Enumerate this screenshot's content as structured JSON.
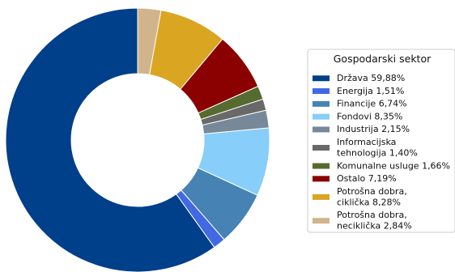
{
  "chart_data": {
    "type": "pie",
    "donut": true,
    "start": "top",
    "direction": "counterclockwise",
    "legend": {
      "title": "Gospodarski sektor",
      "placement": "right"
    },
    "slices": [
      {
        "label": [
          "Država 59,88%"
        ],
        "value": 59.88,
        "color": "#003f8a"
      },
      {
        "label": [
          "Energija 1,51%"
        ],
        "value": 1.51,
        "color": "#4169e1"
      },
      {
        "label": [
          "Financije 6,74%"
        ],
        "value": 6.74,
        "color": "#4682b4"
      },
      {
        "label": [
          "Fondovi 8,35%"
        ],
        "value": 8.35,
        "color": "#87cefa"
      },
      {
        "label": [
          "Industrija 2,15%"
        ],
        "value": 2.15,
        "color": "#778899"
      },
      {
        "label": [
          "Informacijska",
          "tehnologija 1,40%"
        ],
        "value": 1.4,
        "color": "#696969"
      },
      {
        "label": [
          "Komunalne usluge 1,66%"
        ],
        "value": 1.66,
        "color": "#556b2f"
      },
      {
        "label": [
          "Ostalo 7,19%"
        ],
        "value": 7.19,
        "color": "#8b0000"
      },
      {
        "label": [
          "Potrošna dobra,",
          "ciklička 8,28%"
        ],
        "value": 8.28,
        "color": "#daa520"
      },
      {
        "label": [
          "Potrošna dobra,",
          "neciklička 2,84%"
        ],
        "value": 2.84,
        "color": "#d2b48c"
      }
    ]
  }
}
